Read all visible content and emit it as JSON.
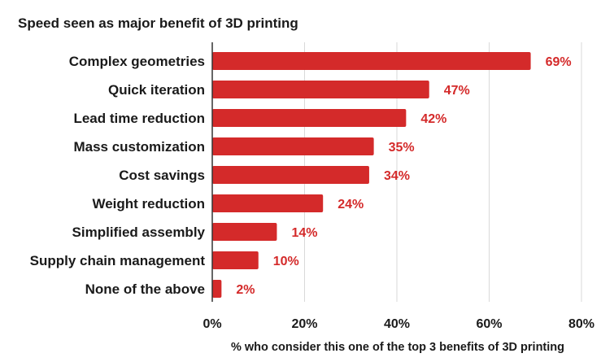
{
  "chart_data": {
    "type": "bar",
    "orientation": "horizontal",
    "title": "Speed seen as major benefit of 3D printing",
    "xlabel": "% who consider this one of the top 3 benefits of 3D printing",
    "ylabel": "",
    "categories": [
      "Complex geometries",
      "Quick iteration",
      "Lead time reduction",
      "Mass customization",
      "Cost savings",
      "Weight reduction",
      "Simplified assembly",
      "Supply chain management",
      "None of the above"
    ],
    "values": [
      69,
      47,
      42,
      35,
      34,
      24,
      14,
      10,
      2
    ],
    "value_labels": [
      "69%",
      "47%",
      "42%",
      "35%",
      "34%",
      "24%",
      "14%",
      "10%",
      "2%"
    ],
    "xlim": [
      0,
      80
    ],
    "x_ticks": [
      0,
      20,
      40,
      60,
      80
    ],
    "x_tick_labels": [
      "0%",
      "20%",
      "40%",
      "60%",
      "80%"
    ],
    "grid": "vertical",
    "legend": "none",
    "colors": {
      "bar": "#d42a2a",
      "value_label": "#d42a2a",
      "grid": "#d9d9d9",
      "axis": "#333333",
      "text": "#1a1a1a"
    }
  }
}
